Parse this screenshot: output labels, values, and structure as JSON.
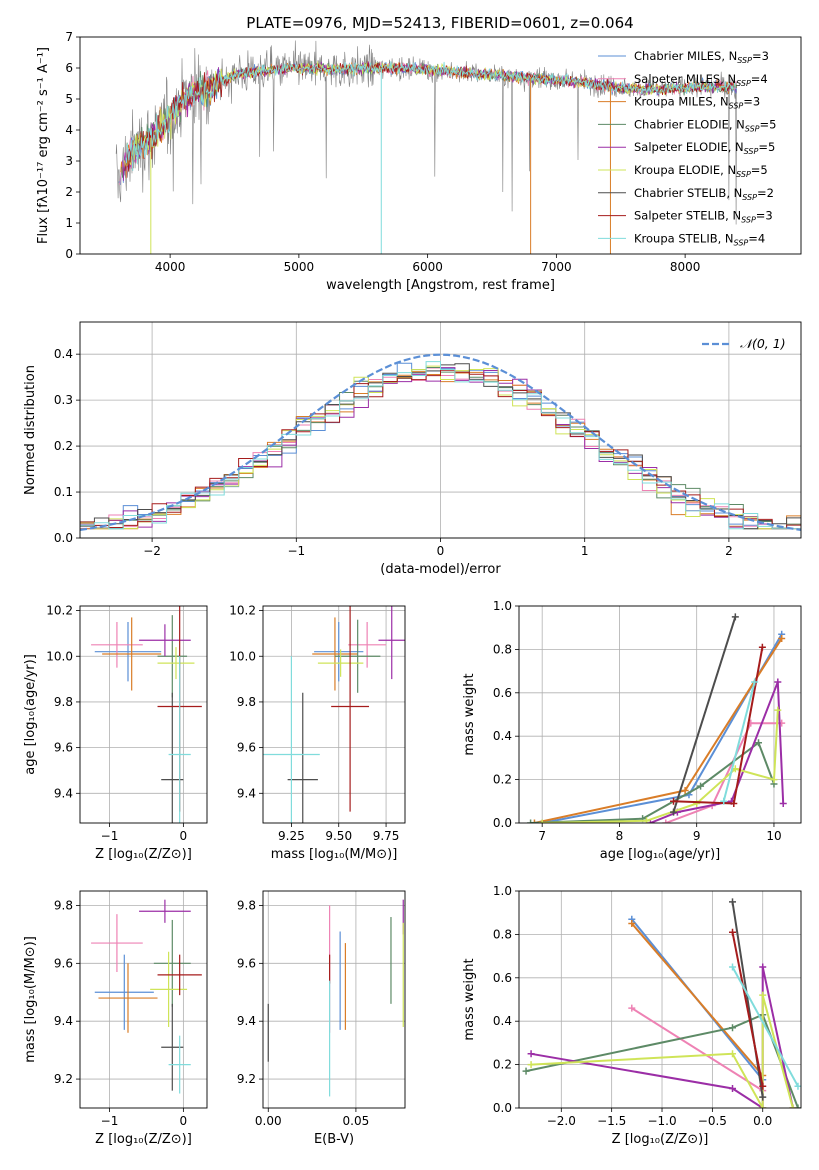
{
  "colors": {
    "Chabrier MILES": "#5b8fd6",
    "Salpeter MILES": "#ee82b4",
    "Kroupa MILES": "#d97d28",
    "Chabrier ELODIE": "#5d8a66",
    "Salpeter ELODIE": "#9b2ea6",
    "Kroupa ELODIE": "#cfe458",
    "Chabrier STELIB": "#4d4d4d",
    "Salpeter STELIB": "#a51c1c",
    "Kroupa STELIB": "#80dcdc"
  },
  "chart_data": [
    {
      "id": "spectrum",
      "type": "line",
      "title": "PLATE=0976, MJD=52413, FIBERID=0601, z=0.064",
      "xlabel": "wavelength [Angstrom, rest frame]",
      "ylabel": "Flux [fλ10⁻¹⁷ erg cm⁻² s⁻¹ A⁻¹]",
      "xlim": [
        3300,
        8900
      ],
      "ylim": [
        0,
        7
      ],
      "xticks": [
        "4000",
        "5000",
        "6000",
        "7000",
        "8000"
      ],
      "yticks": [
        "0",
        "1",
        "2",
        "3",
        "4",
        "5",
        "6",
        "7"
      ],
      "legend_position": "upper-right",
      "legend": [
        {
          "name": "Chabrier MILES",
          "nssp": "3"
        },
        {
          "name": "Salpeter MILES",
          "nssp": "4"
        },
        {
          "name": "Kroupa MILES",
          "nssp": "3"
        },
        {
          "name": "Chabrier ELODIE",
          "nssp": "5"
        },
        {
          "name": "Salpeter ELODIE",
          "nssp": "5"
        },
        {
          "name": "Kroupa ELODIE",
          "nssp": "5"
        },
        {
          "name": "Chabrier STELIB",
          "nssp": "2"
        },
        {
          "name": "Salpeter STELIB",
          "nssp": "3"
        },
        {
          "name": "Kroupa STELIB",
          "nssp": "4"
        }
      ],
      "series_continuum": {
        "x": [
          3600,
          3700,
          3800,
          3900,
          4000,
          4100,
          4200,
          4300,
          4400,
          4500,
          4700,
          5000,
          5300,
          5500,
          5800,
          6000,
          6300,
          6600,
          6900,
          7200,
          7500,
          7800,
          8100,
          8300
        ],
        "y": [
          2.4,
          3.3,
          3.6,
          3.9,
          4.4,
          5.0,
          5.2,
          5.3,
          5.6,
          5.8,
          5.9,
          6.0,
          5.95,
          6.0,
          6.0,
          5.95,
          5.85,
          5.75,
          5.65,
          5.55,
          5.35,
          5.3,
          5.4,
          5.4
        ]
      }
    },
    {
      "id": "residuals",
      "type": "histogram",
      "xlabel": "(data-model)/error",
      "ylabel": "Normed distribution",
      "xlim": [
        -2.5,
        2.5
      ],
      "ylim": [
        0,
        0.47
      ],
      "xticks": [
        "−2",
        "−1",
        "0",
        "1",
        "2"
      ],
      "yticks": [
        "0.0",
        "0.1",
        "0.2",
        "0.3",
        "0.4"
      ],
      "legend": "𝒩(0, 1)",
      "legend_position": "upper-right",
      "reference_curve": "normal pdf, mean 0, sigma 1",
      "bin_width": 0.1
    },
    {
      "id": "age-vs-Z",
      "type": "errorbar",
      "xlabel": "Z [log₁₀(Z/Z⊙)]",
      "ylabel": "age  [log₁₀(age/yr)]",
      "xlim": [
        -1.4,
        0.32
      ],
      "ylim": [
        9.27,
        10.22
      ],
      "xticks": [
        "−1",
        "0"
      ],
      "yticks": [
        "9.4",
        "9.6",
        "9.8",
        "10.0",
        "10.2"
      ],
      "points": [
        {
          "series": "Chabrier MILES",
          "x": -0.75,
          "y": 10.02,
          "xerr": 0.45,
          "yerr": 0.13
        },
        {
          "series": "Salpeter MILES",
          "x": -0.9,
          "y": 10.05,
          "xerr": 0.35,
          "yerr": 0.1
        },
        {
          "series": "Kroupa MILES",
          "x": -0.7,
          "y": 10.01,
          "xerr": 0.4,
          "yerr": 0.16
        },
        {
          "series": "Chabrier ELODIE",
          "x": -0.15,
          "y": 10.0,
          "xerr": 0.2,
          "yerr": 0.18
        },
        {
          "series": "Salpeter ELODIE",
          "x": -0.25,
          "y": 10.07,
          "xerr": 0.35,
          "yerr": 0.07
        },
        {
          "series": "Kroupa ELODIE",
          "x": -0.1,
          "y": 9.97,
          "xerr": 0.25,
          "yerr": 0.07
        },
        {
          "series": "Chabrier STELIB",
          "x": -0.15,
          "y": 9.46,
          "xerr": 0.15,
          "yerr": 0.38
        },
        {
          "series": "Salpeter STELIB",
          "x": -0.05,
          "y": 9.78,
          "xerr": 0.3,
          "yerr": 0.46
        },
        {
          "series": "Kroupa STELIB",
          "x": -0.05,
          "y": 9.57,
          "xerr": 0.15,
          "yerr": 0.43
        }
      ]
    },
    {
      "id": "age-vs-mass",
      "type": "errorbar",
      "xlabel": "mass [log₁₀(M/M⊙)]",
      "ylabel": "",
      "xlim": [
        9.1,
        9.85
      ],
      "ylim": [
        9.27,
        10.22
      ],
      "xticks": [
        "9.25",
        "9.50",
        "9.75"
      ],
      "yticks": [
        "9.4",
        "9.6",
        "9.8",
        "10.0",
        "10.2"
      ],
      "points": [
        {
          "series": "Chabrier MILES",
          "x": 9.5,
          "y": 10.02,
          "xerr": 0.13,
          "yerr": 0.13
        },
        {
          "series": "Salpeter MILES",
          "x": 9.65,
          "y": 10.05,
          "xerr": 0.1,
          "yerr": 0.1
        },
        {
          "series": "Kroupa MILES",
          "x": 9.48,
          "y": 10.01,
          "xerr": 0.12,
          "yerr": 0.16
        },
        {
          "series": "Chabrier ELODIE",
          "x": 9.6,
          "y": 10.0,
          "xerr": 0.12,
          "yerr": 0.16
        },
        {
          "series": "Salpeter ELODIE",
          "x": 9.78,
          "y": 10.07,
          "xerr": 0.07,
          "yerr": 0.17
        },
        {
          "series": "Kroupa ELODIE",
          "x": 9.51,
          "y": 9.97,
          "xerr": 0.12,
          "yerr": 0.06
        },
        {
          "series": "Chabrier STELIB",
          "x": 9.31,
          "y": 9.46,
          "xerr": 0.08,
          "yerr": 0.38
        },
        {
          "series": "Salpeter STELIB",
          "x": 9.56,
          "y": 9.78,
          "xerr": 0.1,
          "yerr": 0.46
        },
        {
          "series": "Kroupa STELIB",
          "x": 9.25,
          "y": 9.57,
          "xerr": 0.15,
          "yerr": 0.43
        }
      ]
    },
    {
      "id": "mass-weight-vs-age",
      "type": "line",
      "xlabel": "age  [log₁₀(age/yr)]",
      "ylabel": "mass weight",
      "xlim": [
        6.7,
        10.35
      ],
      "ylim": [
        0,
        1
      ],
      "xticks": [
        "7",
        "8",
        "9",
        "10"
      ],
      "yticks": [
        "0.0",
        "0.2",
        "0.4",
        "0.6",
        "0.8",
        "1.0"
      ],
      "series": [
        {
          "name": "Chabrier MILES",
          "x": [
            7.0,
            8.9,
            10.1
          ],
          "y": [
            0.0,
            0.13,
            0.87
          ]
        },
        {
          "name": "Salpeter MILES",
          "x": [
            8.6,
            9.2,
            9.7,
            10.1
          ],
          "y": [
            0.0,
            0.08,
            0.46,
            0.46
          ]
        },
        {
          "name": "Kroupa MILES",
          "x": [
            6.9,
            8.85,
            10.1
          ],
          "y": [
            0.0,
            0.15,
            0.85
          ]
        },
        {
          "name": "Chabrier ELODIE",
          "x": [
            6.85,
            8.3,
            9.05,
            9.8,
            10.0
          ],
          "y": [
            0.0,
            0.02,
            0.17,
            0.37,
            0.18
          ]
        },
        {
          "name": "Salpeter ELODIE",
          "x": [
            8.4,
            8.75,
            9.45,
            10.05,
            10.12
          ],
          "y": [
            0.0,
            0.05,
            0.1,
            0.65,
            0.09
          ]
        },
        {
          "name": "Kroupa ELODIE",
          "x": [
            7.0,
            8.35,
            9.0,
            9.5,
            10.0,
            10.05
          ],
          "y": [
            0.0,
            0.01,
            0.09,
            0.25,
            0.2,
            0.52
          ]
        },
        {
          "name": "Chabrier STELIB",
          "x": [
            8.7,
            9.5
          ],
          "y": [
            0.05,
            0.95
          ]
        },
        {
          "name": "Salpeter STELIB",
          "x": [
            8.7,
            9.48,
            9.85
          ],
          "y": [
            0.1,
            0.09,
            0.81
          ]
        },
        {
          "name": "Kroupa STELIB",
          "x": [
            9.35,
            9.75
          ],
          "y": [
            0.1,
            0.65
          ]
        }
      ]
    },
    {
      "id": "mass-vs-Z",
      "type": "errorbar",
      "xlabel": "Z [log₁₀(Z/Z⊙)]",
      "ylabel": "mass [log₁₀(M/M⊙)]",
      "xlim": [
        -1.4,
        0.32
      ],
      "ylim": [
        9.1,
        9.85
      ],
      "xticks": [
        "−1",
        "0"
      ],
      "yticks": [
        "9.2",
        "9.4",
        "9.6",
        "9.8"
      ],
      "points": [
        {
          "series": "Chabrier MILES",
          "x": -0.8,
          "y": 9.5,
          "xerr": 0.4,
          "yerr": 0.13
        },
        {
          "series": "Salpeter MILES",
          "x": -0.9,
          "y": 9.67,
          "xerr": 0.35,
          "yerr": 0.1
        },
        {
          "series": "Kroupa MILES",
          "x": -0.75,
          "y": 9.48,
          "xerr": 0.4,
          "yerr": 0.12
        },
        {
          "series": "Chabrier ELODIE",
          "x": -0.15,
          "y": 9.6,
          "xerr": 0.25,
          "yerr": 0.15
        },
        {
          "series": "Salpeter ELODIE",
          "x": -0.25,
          "y": 9.78,
          "xerr": 0.35,
          "yerr": 0.04
        },
        {
          "series": "Kroupa ELODIE",
          "x": -0.2,
          "y": 9.51,
          "xerr": 0.25,
          "yerr": 0.13
        },
        {
          "series": "Chabrier STELIB",
          "x": -0.15,
          "y": 9.31,
          "xerr": 0.15,
          "yerr": 0.15
        },
        {
          "series": "Salpeter STELIB",
          "x": -0.05,
          "y": 9.56,
          "xerr": 0.3,
          "yerr": 0.07
        },
        {
          "series": "Kroupa STELIB",
          "x": -0.05,
          "y": 9.25,
          "xerr": 0.15,
          "yerr": 0.1
        }
      ]
    },
    {
      "id": "mass-vs-EBV",
      "type": "errorbar",
      "xlabel": "E(B-V)",
      "ylabel": "",
      "xlim": [
        -0.003,
        0.078
      ],
      "ylim": [
        9.1,
        9.85
      ],
      "xticks": [
        "0.00",
        "0.05"
      ],
      "yticks": [
        "9.2",
        "9.4",
        "9.6",
        "9.8"
      ],
      "points": [
        {
          "series": "Chabrier MILES",
          "x": 0.041,
          "y": 9.54,
          "xerr": 0,
          "yerr": 0.17
        },
        {
          "series": "Salpeter MILES",
          "x": 0.035,
          "y": 9.58,
          "xerr": 0,
          "yerr": 0.22
        },
        {
          "series": "Kroupa MILES",
          "x": 0.044,
          "y": 9.52,
          "xerr": 0,
          "yerr": 0.15
        },
        {
          "series": "Chabrier ELODIE",
          "x": 0.07,
          "y": 9.61,
          "xerr": 0,
          "yerr": 0.15
        },
        {
          "series": "Salpeter ELODIE",
          "x": 0.077,
          "y": 9.76,
          "xerr": 0,
          "yerr": 0.06
        },
        {
          "series": "Kroupa ELODIE",
          "x": 0.077,
          "y": 9.56,
          "xerr": 0,
          "yerr": 0.18
        },
        {
          "series": "Chabrier STELIB",
          "x": 0.0,
          "y": 9.36,
          "xerr": 0,
          "yerr": 0.1
        },
        {
          "series": "Salpeter STELIB",
          "x": 0.035,
          "y": 9.58,
          "xerr": 0,
          "yerr": 0.05
        },
        {
          "series": "Kroupa STELIB",
          "x": 0.035,
          "y": 9.34,
          "xerr": 0,
          "yerr": 0.2
        }
      ]
    },
    {
      "id": "mass-weight-vs-Z",
      "type": "line",
      "xlabel": "Z [log₁₀(Z/Z⊙)]",
      "ylabel": "mass weight",
      "xlim": [
        -2.42,
        0.38
      ],
      "ylim": [
        0,
        1
      ],
      "xticks": [
        "−2.0",
        "−1.5",
        "−1.0",
        "−0.5",
        "0.0"
      ],
      "yticks": [
        "0.0",
        "0.2",
        "0.4",
        "0.6",
        "0.8",
        "1.0"
      ],
      "series": [
        {
          "name": "Chabrier MILES",
          "x": [
            -1.3,
            0.0
          ],
          "y": [
            0.87,
            0.13
          ]
        },
        {
          "name": "Salpeter MILES",
          "x": [
            -1.3,
            0.0
          ],
          "y": [
            0.46,
            0.08
          ]
        },
        {
          "name": "Kroupa MILES",
          "x": [
            -1.3,
            0.0
          ],
          "y": [
            0.85,
            0.15
          ]
        },
        {
          "name": "Chabrier ELODIE",
          "x": [
            -2.35,
            -0.3,
            0.0,
            0.35
          ],
          "y": [
            0.17,
            0.37,
            0.43,
            0.0
          ]
        },
        {
          "name": "Salpeter ELODIE",
          "x": [
            -2.3,
            -0.3,
            0.0,
            0.0,
            0.3
          ],
          "y": [
            0.25,
            0.09,
            0.0,
            0.65,
            0.0
          ]
        },
        {
          "name": "Kroupa ELODIE",
          "x": [
            -2.3,
            -0.3,
            0.0,
            0.0,
            0.3
          ],
          "y": [
            0.2,
            0.25,
            0.0,
            0.52,
            0.0
          ]
        },
        {
          "name": "Chabrier STELIB",
          "x": [
            -0.3,
            0.0
          ],
          "y": [
            0.95,
            0.05
          ]
        },
        {
          "name": "Salpeter STELIB",
          "x": [
            -0.3,
            0.0
          ],
          "y": [
            0.81,
            0.1
          ]
        },
        {
          "name": "Kroupa STELIB",
          "x": [
            -0.3,
            0.35
          ],
          "y": [
            0.65,
            0.1
          ]
        }
      ]
    }
  ]
}
